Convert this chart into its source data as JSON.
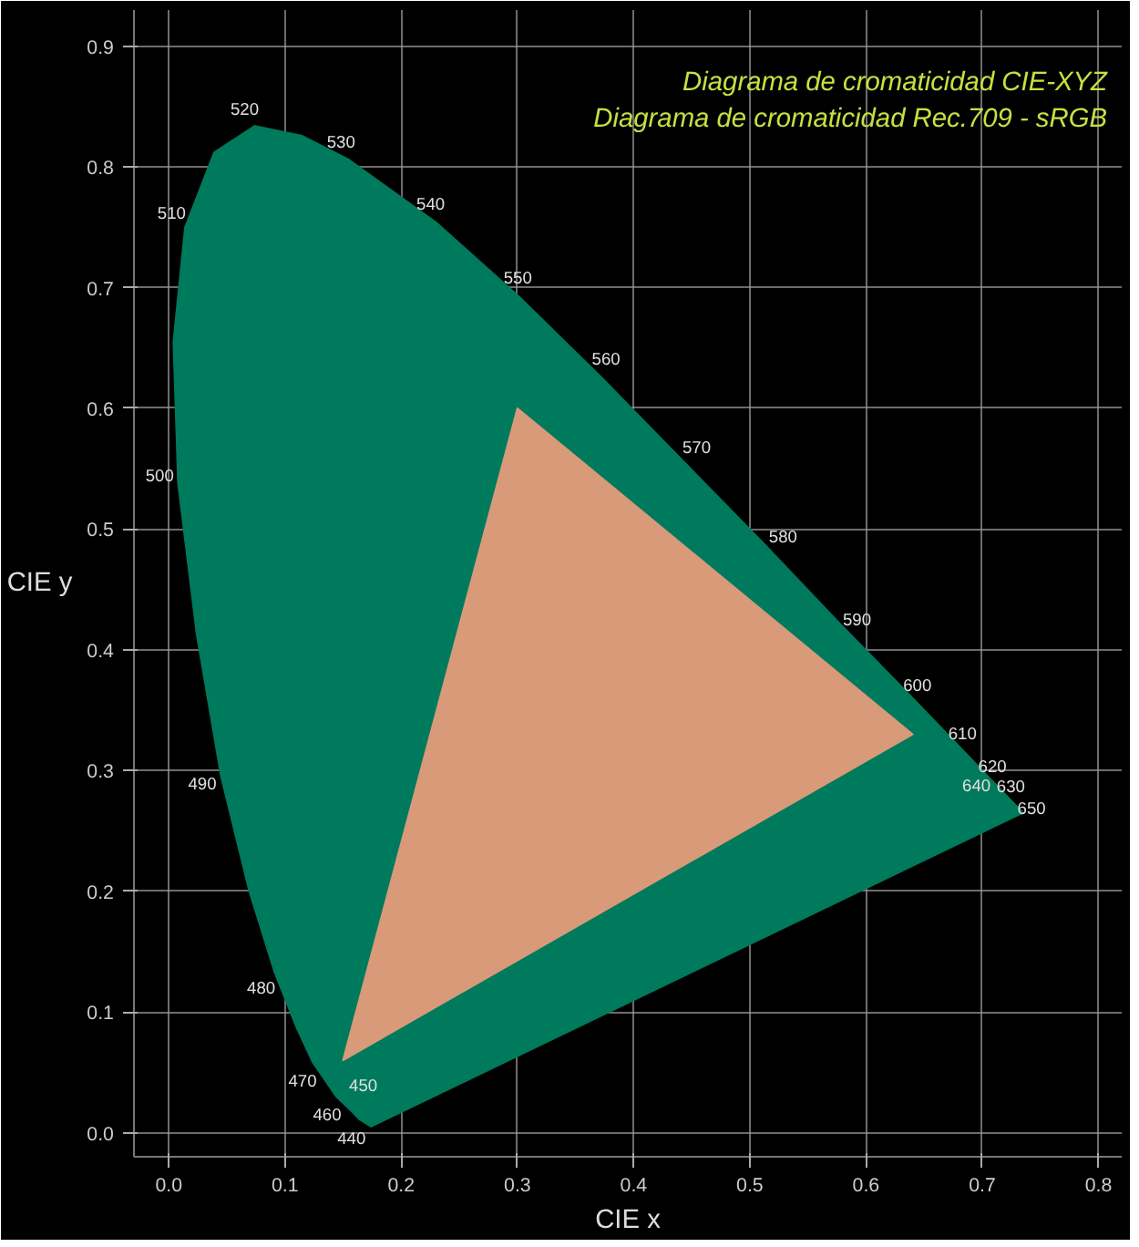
{
  "chart_data": {
    "type": "area",
    "title": "Diagrama de cromaticidad CIE-XYZ",
    "subtitle": "Diagrama de cromaticidad Rec.709 - sRGB",
    "xlabel": "CIE x",
    "ylabel": "CIE y",
    "series": [
      {
        "color": "#007a5c",
        "x": [
          0.174,
          0.164,
          0.157,
          0.144,
          0.124,
          0.11,
          0.091,
          0.069,
          0.045,
          0.024,
          0.008,
          0.004,
          0.014,
          0.039,
          0.074,
          0.114,
          0.155,
          0.23,
          0.302,
          0.373,
          0.444,
          0.513,
          0.575,
          0.627,
          0.666,
          0.692,
          0.708,
          0.719,
          0.726,
          0.735,
          0.174
        ],
        "values": [
          0.005,
          0.011,
          0.018,
          0.03,
          0.058,
          0.087,
          0.133,
          0.201,
          0.295,
          0.413,
          0.538,
          0.655,
          0.75,
          0.812,
          0.834,
          0.826,
          0.806,
          0.754,
          0.692,
          0.625,
          0.555,
          0.487,
          0.424,
          0.373,
          0.334,
          0.308,
          0.292,
          0.281,
          0.274,
          0.265,
          0.005
        ]
      },
      {
        "color": "#d99a7a",
        "x": [
          0.64,
          0.3,
          0.15,
          0.64
        ],
        "values": [
          0.33,
          0.6,
          0.06,
          0.33
        ]
      }
    ],
    "annotations": [
      {
        "text": "440",
        "x": 0.164,
        "y": 0.011
      },
      {
        "text": "450",
        "x": 0.157,
        "y": 0.018
      },
      {
        "text": "460",
        "x": 0.144,
        "y": 0.03
      },
      {
        "text": "470",
        "x": 0.124,
        "y": 0.058
      },
      {
        "text": "480",
        "x": 0.091,
        "y": 0.133
      },
      {
        "text": "490",
        "x": 0.045,
        "y": 0.295
      },
      {
        "text": "500",
        "x": 0.008,
        "y": 0.538
      },
      {
        "text": "510",
        "x": 0.014,
        "y": 0.75
      },
      {
        "text": "520",
        "x": 0.074,
        "y": 0.834
      },
      {
        "text": "530",
        "x": 0.155,
        "y": 0.806
      },
      {
        "text": "540",
        "x": 0.23,
        "y": 0.754
      },
      {
        "text": "550",
        "x": 0.302,
        "y": 0.692
      },
      {
        "text": "560",
        "x": 0.373,
        "y": 0.625
      },
      {
        "text": "570",
        "x": 0.444,
        "y": 0.555
      },
      {
        "text": "580",
        "x": 0.513,
        "y": 0.487
      },
      {
        "text": "590",
        "x": 0.575,
        "y": 0.424
      },
      {
        "text": "600",
        "x": 0.627,
        "y": 0.373
      },
      {
        "text": "610",
        "x": 0.666,
        "y": 0.334
      },
      {
        "text": "620",
        "x": 0.692,
        "y": 0.308
      },
      {
        "text": "630",
        "x": 0.708,
        "y": 0.292
      },
      {
        "text": "640",
        "x": 0.719,
        "y": 0.281
      },
      {
        "text": "650",
        "x": 0.726,
        "y": 0.274
      }
    ],
    "xlim": [
      -0.03,
      0.82
    ],
    "ylim": [
      -0.02,
      0.93
    ],
    "xticks": [
      {
        "value": 0,
        "label": "0.0"
      },
      0.1,
      0.2,
      0.3,
      0.4,
      0.5,
      0.6,
      0.7,
      0.8
    ],
    "yticks": [
      {
        "value": 0,
        "label": "0.0"
      },
      0.1,
      0.2,
      0.3,
      0.4,
      0.5,
      0.6,
      0.7,
      0.8,
      0.9
    ],
    "grid": true
  }
}
